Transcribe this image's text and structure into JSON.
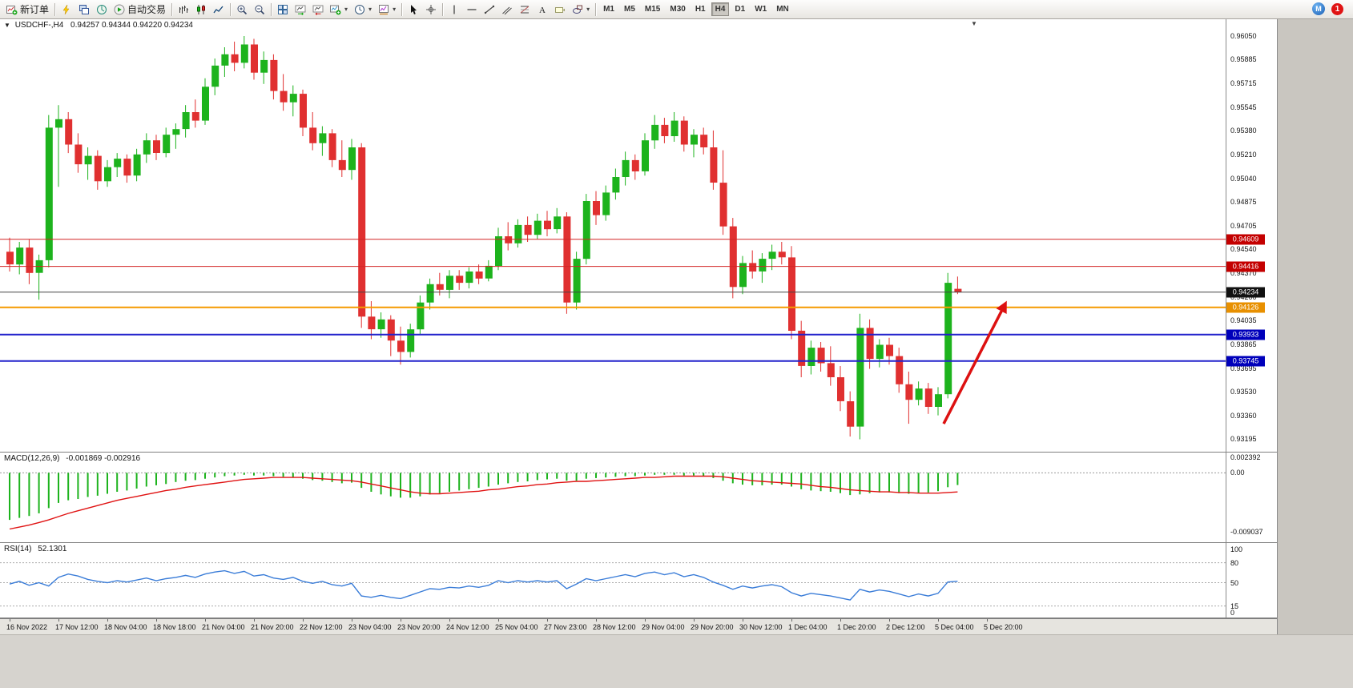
{
  "colors": {
    "bull": "#1db31d",
    "bear": "#e03030",
    "macd_hist": "#1db31d",
    "macd_signal": "#e01212",
    "rsi_line": "#3b7dd8",
    "arrow": "#dd1111",
    "chrome": "#d6d3ce"
  },
  "toolbar": {
    "new_order_label": "新订单",
    "autotrading_label": "自动交易",
    "timeframes": [
      "M1",
      "M5",
      "M15",
      "M30",
      "H1",
      "H4",
      "D1",
      "W1",
      "MN"
    ],
    "active_timeframe": "H4",
    "notification_count": "1",
    "items": [
      {
        "name": "new-order-button",
        "icon": "new-order-icon",
        "label": "新订单"
      },
      {
        "name": "separator"
      },
      {
        "name": "charts-button",
        "icon": "lightning-icon"
      },
      {
        "name": "marketwatch-button",
        "icon": "windows-icon"
      },
      {
        "name": "navigator-button",
        "icon": "navigator-icon"
      },
      {
        "name": "autotrading-button",
        "icon": "autotrading-icon",
        "label": "自动交易"
      },
      {
        "name": "separator"
      },
      {
        "name": "bar-chart-button",
        "icon": "bar-chart-icon"
      },
      {
        "name": "candlestick-button",
        "icon": "candlestick-icon"
      },
      {
        "name": "line-chart-button",
        "icon": "line-chart-icon"
      },
      {
        "name": "separator"
      },
      {
        "name": "zoom-in-button",
        "icon": "zoom-in-icon"
      },
      {
        "name": "zoom-out-button",
        "icon": "zoom-out-icon"
      },
      {
        "name": "separator"
      },
      {
        "name": "tile-windows-button",
        "icon": "tile-windows-icon"
      },
      {
        "name": "auto-scroll-button",
        "icon": "auto-scroll-icon"
      },
      {
        "name": "chart-shift-button",
        "icon": "chart-shift-icon"
      },
      {
        "name": "indicators-button",
        "icon": "indicators-icon",
        "caret": true
      },
      {
        "name": "periods-button",
        "icon": "clock-icon",
        "caret": true
      },
      {
        "name": "templates-button",
        "icon": "template-icon",
        "caret": true
      },
      {
        "name": "separator"
      },
      {
        "name": "cursor-button",
        "icon": "cursor-icon"
      },
      {
        "name": "crosshair-button",
        "icon": "crosshair-icon"
      },
      {
        "name": "separator"
      },
      {
        "name": "vline-button",
        "icon": "vline-icon"
      },
      {
        "name": "hline-button",
        "icon": "hline-icon"
      },
      {
        "name": "trendline-button",
        "icon": "trendline-icon"
      },
      {
        "name": "channel-button",
        "icon": "channel-icon"
      },
      {
        "name": "fibonacci-button",
        "icon": "fibonacci-icon"
      },
      {
        "name": "text-button",
        "icon": "text-icon"
      },
      {
        "name": "label-button",
        "icon": "label-icon"
      },
      {
        "name": "shapes-button",
        "icon": "shapes-icon",
        "caret": true
      },
      {
        "name": "separator"
      }
    ]
  },
  "chart": {
    "title": "USDCHF-,H4",
    "ohlc": "0.94257 0.94344 0.94220 0.94234"
  },
  "chart_data": {
    "type": "candlestick",
    "symbol": "USDCHF-",
    "timeframe": "H4",
    "open": "0.94257",
    "high": "0.94344",
    "low": "0.94220",
    "close": "0.94234",
    "ylim": [
      0.93102,
      0.96169
    ],
    "price_axis_labels": [
      "0.96050",
      "0.95885",
      "0.95715",
      "0.95545",
      "0.95380",
      "0.95210",
      "0.95040",
      "0.94875",
      "0.94705",
      "0.94540",
      "0.94370",
      "0.94200",
      "0.94035",
      "0.93865",
      "0.93695",
      "0.93530",
      "0.93360",
      "0.93195"
    ],
    "hlines": [
      {
        "price": 0.94609,
        "label": "0.94609",
        "color": "#d22525",
        "badge_bg": "#c40000",
        "thickness": 1
      },
      {
        "price": 0.94416,
        "label": "0.94416",
        "color": "#d22525",
        "badge_bg": "#c40000",
        "thickness": 1
      },
      {
        "price": 0.94126,
        "label": "0.94126",
        "color": "#f59a00",
        "badge_bg": "#e89000",
        "thickness": 2
      },
      {
        "price": 0.93933,
        "label": "0.93933",
        "color": "#2222cc",
        "badge_bg": "#0000bb",
        "thickness": 2
      },
      {
        "price": 0.93745,
        "label": "0.93745",
        "color": "#2222cc",
        "badge_bg": "#0000bb",
        "thickness": 2
      }
    ],
    "current_price": {
      "price": 0.94234,
      "label": "0.94234",
      "color": "#444444",
      "badge_bg": "#111111"
    },
    "arrow": {
      "bar_start": 95.9,
      "price_start": 0.933,
      "bar_end": 102.2,
      "price_end": 0.9415
    },
    "label_every_bars": 5,
    "time_labels": [
      "16 Nov 2022",
      "17 Nov 12:00",
      "18 Nov 04:00",
      "18 Nov 18:00",
      "21 Nov 04:00",
      "21 Nov 20:00",
      "22 Nov 12:00",
      "23 Nov 04:00",
      "23 Nov 20:00",
      "24 Nov 12:00",
      "25 Nov 04:00",
      "27 Nov 23:00",
      "28 Nov 12:00",
      "29 Nov 04:00",
      "29 Nov 20:00",
      "30 Nov 12:00",
      "1 Dec 04:00",
      "1 Dec 20:00",
      "2 Dec 12:00",
      "5 Dec 04:00",
      "5 Dec 20:00"
    ],
    "candles": [
      [
        0.9452,
        0.9462,
        0.9438,
        0.9443
      ],
      [
        0.9443,
        0.9459,
        0.9436,
        0.9455
      ],
      [
        0.9455,
        0.9461,
        0.9429,
        0.9437
      ],
      [
        0.9437,
        0.945,
        0.9418,
        0.9446
      ],
      [
        0.9446,
        0.9549,
        0.9441,
        0.954
      ],
      [
        0.954,
        0.9556,
        0.9498,
        0.9546
      ],
      [
        0.9546,
        0.9551,
        0.9522,
        0.9528
      ],
      [
        0.9528,
        0.9536,
        0.9508,
        0.9514
      ],
      [
        0.9514,
        0.9526,
        0.9503,
        0.952
      ],
      [
        0.952,
        0.9524,
        0.9496,
        0.9502
      ],
      [
        0.9502,
        0.9517,
        0.9498,
        0.9512
      ],
      [
        0.9512,
        0.9522,
        0.9505,
        0.9518
      ],
      [
        0.9518,
        0.9521,
        0.9501,
        0.9506
      ],
      [
        0.9506,
        0.9525,
        0.9502,
        0.9521
      ],
      [
        0.9521,
        0.9536,
        0.9515,
        0.9531
      ],
      [
        0.9531,
        0.9535,
        0.9517,
        0.9522
      ],
      [
        0.9522,
        0.954,
        0.9519,
        0.9535
      ],
      [
        0.9535,
        0.9543,
        0.9525,
        0.9539
      ],
      [
        0.9539,
        0.9556,
        0.9533,
        0.9551
      ],
      [
        0.9551,
        0.956,
        0.954,
        0.9545
      ],
      [
        0.9545,
        0.9575,
        0.9542,
        0.9569
      ],
      [
        0.9569,
        0.9589,
        0.9563,
        0.9584
      ],
      [
        0.9584,
        0.9597,
        0.9576,
        0.9592
      ],
      [
        0.9592,
        0.9601,
        0.958,
        0.9586
      ],
      [
        0.9586,
        0.9605,
        0.9582,
        0.9599
      ],
      [
        0.9599,
        0.9603,
        0.9574,
        0.9579
      ],
      [
        0.9579,
        0.9594,
        0.9571,
        0.9588
      ],
      [
        0.9588,
        0.9592,
        0.956,
        0.9566
      ],
      [
        0.9566,
        0.9578,
        0.9552,
        0.9558
      ],
      [
        0.9558,
        0.957,
        0.9548,
        0.9564
      ],
      [
        0.9564,
        0.9567,
        0.9534,
        0.954
      ],
      [
        0.954,
        0.9551,
        0.9524,
        0.9529
      ],
      [
        0.9529,
        0.9541,
        0.952,
        0.9536
      ],
      [
        0.9536,
        0.9539,
        0.9512,
        0.9517
      ],
      [
        0.9517,
        0.9531,
        0.9505,
        0.951
      ],
      [
        0.951,
        0.9532,
        0.9503,
        0.9526
      ],
      [
        0.9526,
        0.9529,
        0.9398,
        0.9406
      ],
      [
        0.9406,
        0.9417,
        0.939,
        0.9397
      ],
      [
        0.9397,
        0.9409,
        0.9391,
        0.9404
      ],
      [
        0.9404,
        0.9407,
        0.9378,
        0.9389
      ],
      [
        0.9389,
        0.9399,
        0.9372,
        0.9381
      ],
      [
        0.9381,
        0.9401,
        0.9377,
        0.9397
      ],
      [
        0.9397,
        0.9421,
        0.9393,
        0.9416
      ],
      [
        0.9416,
        0.9433,
        0.9411,
        0.9429
      ],
      [
        0.9429,
        0.9437,
        0.9421,
        0.9425
      ],
      [
        0.9425,
        0.9439,
        0.9419,
        0.9435
      ],
      [
        0.9435,
        0.9439,
        0.9425,
        0.943
      ],
      [
        0.943,
        0.9441,
        0.9426,
        0.9438
      ],
      [
        0.9438,
        0.9443,
        0.9429,
        0.9433
      ],
      [
        0.9433,
        0.9446,
        0.9431,
        0.9442
      ],
      [
        0.9442,
        0.9469,
        0.9439,
        0.9463
      ],
      [
        0.9463,
        0.9473,
        0.9453,
        0.9458
      ],
      [
        0.9458,
        0.9475,
        0.9455,
        0.9471
      ],
      [
        0.9471,
        0.9477,
        0.9459,
        0.9464
      ],
      [
        0.9464,
        0.9479,
        0.9461,
        0.9474
      ],
      [
        0.9474,
        0.9481,
        0.9463,
        0.9468
      ],
      [
        0.9468,
        0.9483,
        0.9465,
        0.9477
      ],
      [
        0.9477,
        0.948,
        0.9408,
        0.9416
      ],
      [
        0.9416,
        0.9452,
        0.9411,
        0.9447
      ],
      [
        0.9447,
        0.9493,
        0.9443,
        0.9488
      ],
      [
        0.9488,
        0.9495,
        0.9471,
        0.9478
      ],
      [
        0.9478,
        0.9499,
        0.9474,
        0.9494
      ],
      [
        0.9494,
        0.9511,
        0.9489,
        0.9505
      ],
      [
        0.9505,
        0.9523,
        0.9499,
        0.9517
      ],
      [
        0.9517,
        0.9521,
        0.9503,
        0.9509
      ],
      [
        0.9509,
        0.9536,
        0.9506,
        0.9531
      ],
      [
        0.9531,
        0.9549,
        0.9525,
        0.9542
      ],
      [
        0.9542,
        0.9547,
        0.9529,
        0.9534
      ],
      [
        0.9534,
        0.9551,
        0.953,
        0.9545
      ],
      [
        0.9545,
        0.9548,
        0.9523,
        0.9528
      ],
      [
        0.9528,
        0.9539,
        0.9519,
        0.9535
      ],
      [
        0.9535,
        0.954,
        0.9521,
        0.9526
      ],
      [
        0.9526,
        0.9538,
        0.9496,
        0.9501
      ],
      [
        0.9501,
        0.9524,
        0.9464,
        0.947
      ],
      [
        0.947,
        0.9476,
        0.9419,
        0.9427
      ],
      [
        0.9427,
        0.9449,
        0.9422,
        0.9444
      ],
      [
        0.9444,
        0.9453,
        0.9433,
        0.9438
      ],
      [
        0.9438,
        0.9451,
        0.943,
        0.9447
      ],
      [
        0.9447,
        0.9457,
        0.9439,
        0.9452
      ],
      [
        0.9452,
        0.9459,
        0.9443,
        0.9448
      ],
      [
        0.9448,
        0.9456,
        0.939,
        0.9396
      ],
      [
        0.9396,
        0.9403,
        0.9363,
        0.9371
      ],
      [
        0.9371,
        0.9389,
        0.9365,
        0.9384
      ],
      [
        0.9384,
        0.9388,
        0.9367,
        0.9373
      ],
      [
        0.9373,
        0.9385,
        0.9357,
        0.9363
      ],
      [
        0.9363,
        0.9371,
        0.9339,
        0.9346
      ],
      [
        0.9346,
        0.9353,
        0.9321,
        0.9328
      ],
      [
        0.9328,
        0.9408,
        0.9319,
        0.9398
      ],
      [
        0.9398,
        0.9404,
        0.9369,
        0.9376
      ],
      [
        0.9376,
        0.939,
        0.937,
        0.9386
      ],
      [
        0.9386,
        0.9391,
        0.9372,
        0.9378
      ],
      [
        0.9378,
        0.9384,
        0.9352,
        0.9358
      ],
      [
        0.9358,
        0.9367,
        0.933,
        0.9347
      ],
      [
        0.9347,
        0.936,
        0.9343,
        0.9355
      ],
      [
        0.9355,
        0.9359,
        0.9337,
        0.9342
      ],
      [
        0.9342,
        0.9356,
        0.9336,
        0.9351
      ],
      [
        0.9351,
        0.9437,
        0.9348,
        0.943
      ],
      [
        0.94257,
        0.94344,
        0.9422,
        0.94234
      ]
    ],
    "macd": {
      "name": "MACD(12,26,9)",
      "values": "-0.001869 -0.002916",
      "axis_labels": [
        "0.002392",
        "0.00",
        "-0.009037"
      ],
      "ylim": [
        -0.0105,
        0.003
      ],
      "hist": [
        -0.0072,
        -0.0069,
        -0.0066,
        -0.0062,
        -0.0054,
        -0.0046,
        -0.0042,
        -0.004,
        -0.0037,
        -0.0035,
        -0.0032,
        -0.0029,
        -0.0027,
        -0.0024,
        -0.0021,
        -0.0019,
        -0.0017,
        -0.0014,
        -0.0012,
        -0.0011,
        -0.0009,
        -0.0007,
        -0.0005,
        -0.0004,
        -0.0003,
        -0.0004,
        -0.0004,
        -0.0005,
        -0.0006,
        -0.0007,
        -0.0009,
        -0.0011,
        -0.0012,
        -0.0014,
        -0.0016,
        -0.0015,
        -0.0023,
        -0.0029,
        -0.0033,
        -0.0036,
        -0.0038,
        -0.0038,
        -0.0036,
        -0.0033,
        -0.0031,
        -0.0029,
        -0.0027,
        -0.0025,
        -0.0023,
        -0.0021,
        -0.0018,
        -0.0016,
        -0.0014,
        -0.0013,
        -0.0011,
        -0.001,
        -0.0009,
        -0.0012,
        -0.0012,
        -0.0009,
        -0.0008,
        -0.0007,
        -0.0006,
        -0.0005,
        -0.0005,
        -0.0004,
        -0.0003,
        -0.0003,
        -0.0003,
        -0.0004,
        -0.0004,
        -0.0005,
        -0.0008,
        -0.0012,
        -0.0016,
        -0.0018,
        -0.0019,
        -0.0019,
        -0.0018,
        -0.0018,
        -0.0021,
        -0.0025,
        -0.0027,
        -0.0028,
        -0.0029,
        -0.0031,
        -0.0034,
        -0.0033,
        -0.0031,
        -0.003,
        -0.003,
        -0.0031,
        -0.0032,
        -0.0031,
        -0.003,
        -0.0028,
        -0.0022,
        -0.001869
      ],
      "signal": [
        -0.0086,
        -0.0083,
        -0.008,
        -0.0076,
        -0.0072,
        -0.0067,
        -0.0062,
        -0.0058,
        -0.0054,
        -0.005,
        -0.0046,
        -0.0042,
        -0.0039,
        -0.0036,
        -0.0033,
        -0.003,
        -0.0027,
        -0.0025,
        -0.0022,
        -0.002,
        -0.0018,
        -0.0016,
        -0.0014,
        -0.0012,
        -0.001,
        -0.0009,
        -0.0008,
        -0.0007,
        -0.0007,
        -0.0007,
        -0.0007,
        -0.0008,
        -0.0009,
        -0.001,
        -0.0011,
        -0.0012,
        -0.0014,
        -0.0017,
        -0.002,
        -0.0023,
        -0.0026,
        -0.0029,
        -0.0031,
        -0.0032,
        -0.0032,
        -0.0031,
        -0.003,
        -0.0029,
        -0.0028,
        -0.0026,
        -0.0025,
        -0.0023,
        -0.0021,
        -0.002,
        -0.0018,
        -0.0017,
        -0.0015,
        -0.0014,
        -0.0013,
        -0.0013,
        -0.0012,
        -0.0011,
        -0.001,
        -0.0009,
        -0.0008,
        -0.0007,
        -0.0007,
        -0.0006,
        -0.0005,
        -0.0005,
        -0.0005,
        -0.0005,
        -0.0005,
        -0.0006,
        -0.0008,
        -0.001,
        -0.0012,
        -0.0013,
        -0.0014,
        -0.0015,
        -0.0016,
        -0.0017,
        -0.0019,
        -0.0021,
        -0.0022,
        -0.0024,
        -0.0026,
        -0.0027,
        -0.0028,
        -0.0029,
        -0.0029,
        -0.003,
        -0.003,
        -0.0031,
        -0.0031,
        -0.0031,
        -0.003,
        -0.002916
      ]
    },
    "rsi": {
      "name": "RSI(14)",
      "value": "52.1301",
      "axis_labels": [
        "100",
        "80",
        "50",
        "15",
        "0"
      ],
      "levels": [
        80,
        50,
        15
      ],
      "ylim": [
        0,
        100
      ],
      "values": [
        48,
        52,
        46,
        50,
        45,
        58,
        63,
        60,
        55,
        52,
        50,
        53,
        51,
        54,
        57,
        53,
        56,
        58,
        61,
        58,
        63,
        66,
        68,
        64,
        67,
        60,
        62,
        57,
        55,
        58,
        52,
        49,
        52,
        47,
        45,
        49,
        30,
        28,
        31,
        28,
        26,
        31,
        36,
        41,
        40,
        43,
        42,
        45,
        43,
        46,
        53,
        50,
        53,
        51,
        53,
        51,
        53,
        41,
        48,
        56,
        53,
        56,
        59,
        62,
        59,
        64,
        66,
        62,
        65,
        59,
        62,
        58,
        51,
        46,
        40,
        45,
        42,
        45,
        47,
        44,
        35,
        30,
        34,
        32,
        30,
        27,
        24,
        40,
        36,
        39,
        37,
        33,
        29,
        33,
        30,
        34,
        51,
        52.13
      ]
    }
  }
}
